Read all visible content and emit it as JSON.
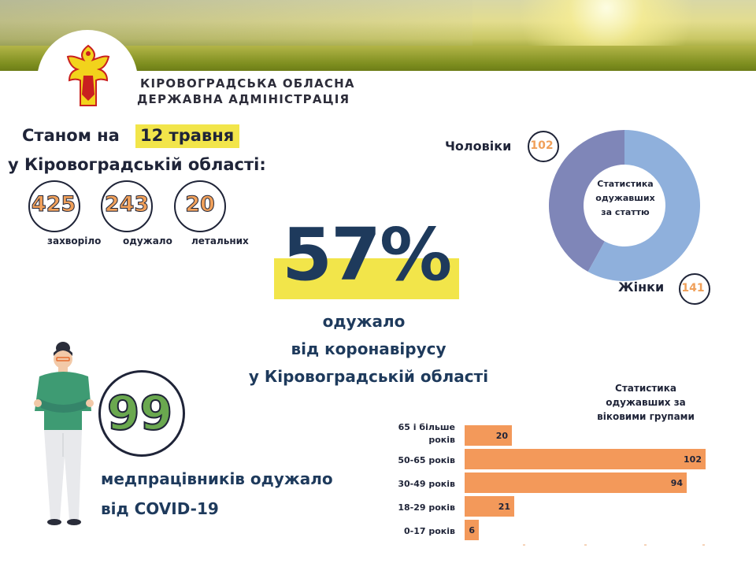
{
  "header": {
    "org_line1": "КІРОВОГРАДСЬКА ОБЛАСНА",
    "org_line2": "ДЕРЖАВНА АДМІНІСТРАЦІЯ"
  },
  "summary": {
    "date_prefix": "Станом на",
    "date": "12 травня",
    "region": "у Кіровоградській області:",
    "stats": [
      {
        "value": "425",
        "label": "захворіло"
      },
      {
        "value": "243",
        "label": "одужало"
      },
      {
        "value": "20",
        "label": "летальних"
      }
    ]
  },
  "recovery": {
    "percent": "57%",
    "line1": "одужало",
    "line2": "від коронавірусу",
    "line3": "у Кіровоградській області"
  },
  "gender": {
    "title_line1": "Статистика",
    "title_line2": "одужавших",
    "title_line3": "за статтю",
    "men_label": "Чоловіки",
    "men_value": "102",
    "women_label": "Жінки",
    "women_value": "141",
    "colors": {
      "men": "#7f86b8",
      "women": "#8fb0dc"
    }
  },
  "medics": {
    "value": "99",
    "line1": "медпрацівників одужало",
    "line2": "від COVID-19"
  },
  "chart_data": {
    "type": "bar",
    "title": "Статистика одужавших за віковими групами",
    "title_lines": [
      "Статистика",
      "одужавших за",
      "віковими групами"
    ],
    "categories": [
      "65 і більше років",
      "50-65 років",
      "30-49 років",
      "18-29 років",
      "0-17 років"
    ],
    "category_lines": [
      [
        "65 і більше",
        "років"
      ],
      [
        "50-65 років"
      ],
      [
        "30-49 років"
      ],
      [
        "18-29 років"
      ],
      [
        "0-17 років"
      ]
    ],
    "values": [
      20,
      102,
      94,
      21,
      6
    ],
    "color": "#f3995a"
  }
}
